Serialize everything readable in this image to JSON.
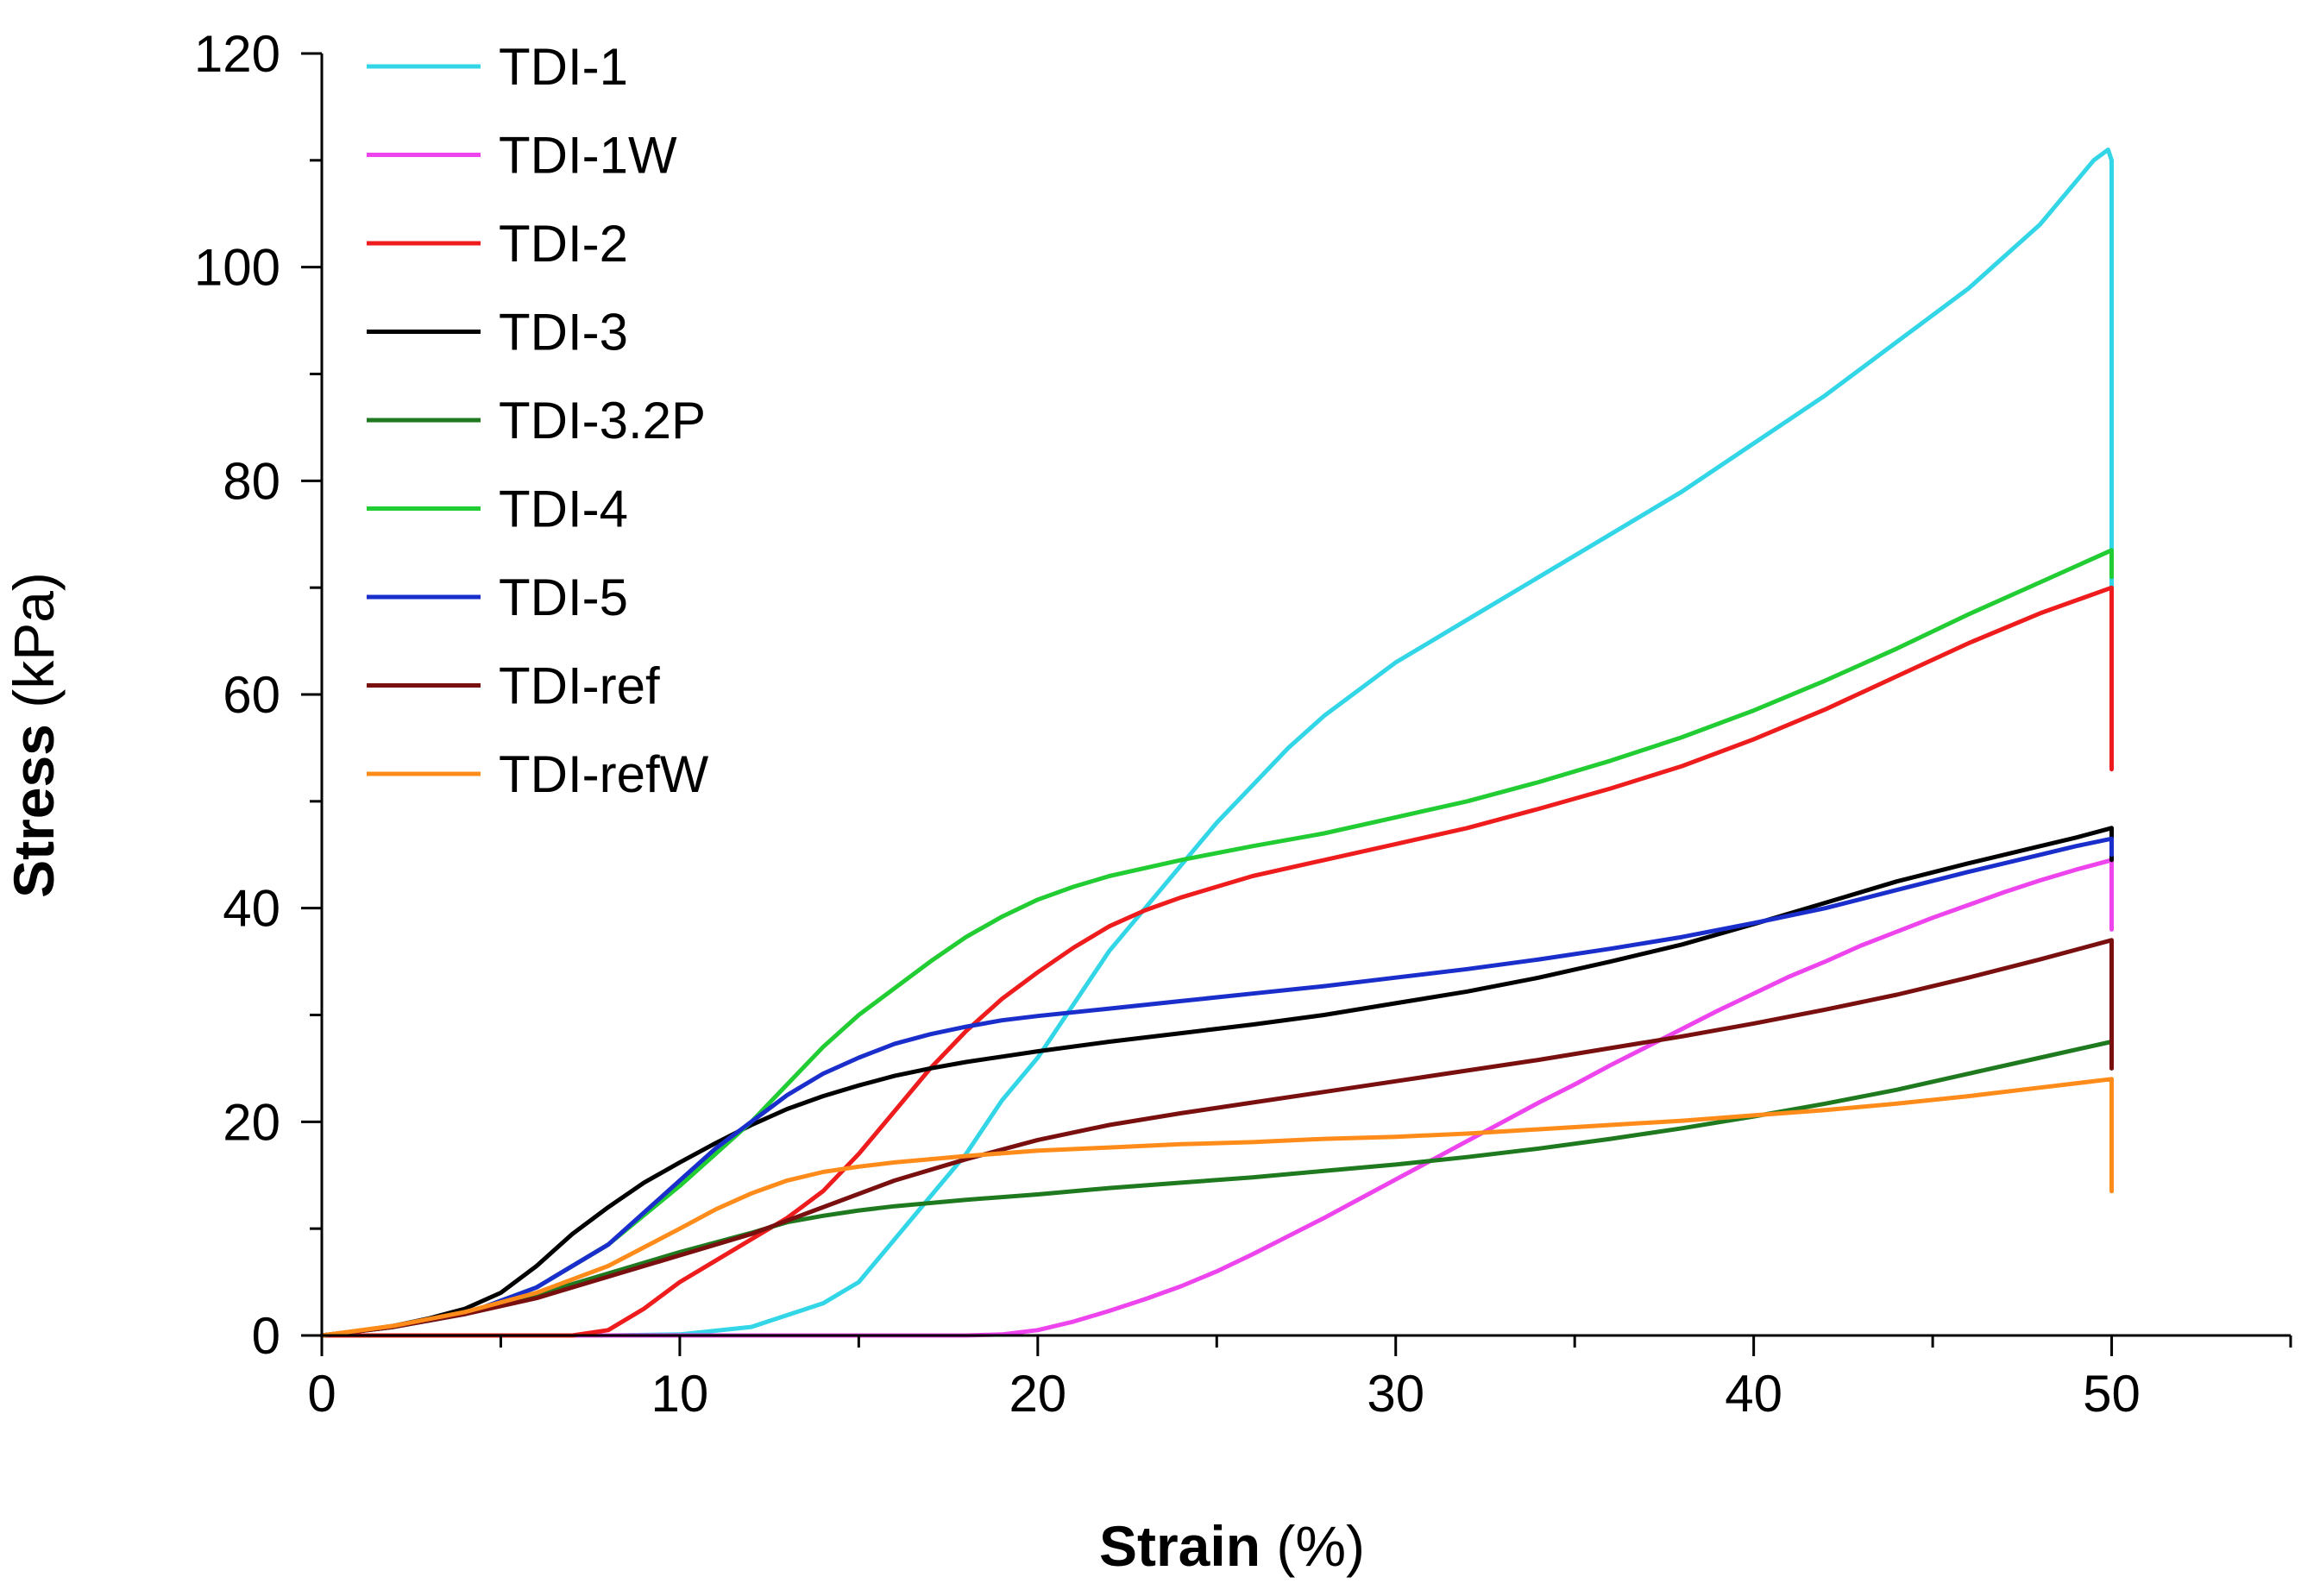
{
  "chart_data": {
    "type": "line",
    "xlabel_bold": "Strain",
    "xlabel_unit": " (%)",
    "ylabel_bold": "Stress",
    "ylabel_unit": " (kPa)",
    "xlim": [
      0,
      55
    ],
    "ylim": [
      0,
      120
    ],
    "xticks": [
      0,
      10,
      20,
      30,
      40,
      50
    ],
    "yticks": [
      0,
      20,
      40,
      60,
      80,
      100,
      120
    ],
    "legend_position": "top-left",
    "grid": false,
    "series": [
      {
        "name": "TDI-1",
        "color": "#33D6E6",
        "points": [
          [
            0,
            0
          ],
          [
            8,
            0
          ],
          [
            10,
            0.1
          ],
          [
            12,
            0.8
          ],
          [
            14,
            3
          ],
          [
            15,
            5
          ],
          [
            16,
            9
          ],
          [
            17,
            13
          ],
          [
            18,
            17
          ],
          [
            19,
            22
          ],
          [
            20,
            26
          ],
          [
            21,
            31
          ],
          [
            22,
            36
          ],
          [
            23,
            40
          ],
          [
            24,
            44
          ],
          [
            25,
            48
          ],
          [
            26,
            51.5
          ],
          [
            27,
            55
          ],
          [
            28,
            58
          ],
          [
            30,
            63
          ],
          [
            32,
            67
          ],
          [
            34,
            71
          ],
          [
            36,
            75
          ],
          [
            38,
            79
          ],
          [
            40,
            83.5
          ],
          [
            42,
            88
          ],
          [
            44,
            93
          ],
          [
            46,
            98
          ],
          [
            48,
            104
          ],
          [
            49.5,
            110
          ],
          [
            49.9,
            111
          ],
          [
            50,
            110
          ],
          [
            50,
            54
          ]
        ]
      },
      {
        "name": "TDI-1W",
        "color": "#EE44EE",
        "points": [
          [
            0,
            0
          ],
          [
            18,
            0
          ],
          [
            19,
            0.1
          ],
          [
            20,
            0.5
          ],
          [
            21,
            1.3
          ],
          [
            22,
            2.3
          ],
          [
            23,
            3.4
          ],
          [
            24,
            4.6
          ],
          [
            25,
            6
          ],
          [
            26,
            7.6
          ],
          [
            27,
            9.3
          ],
          [
            28,
            11
          ],
          [
            29,
            12.8
          ],
          [
            30,
            14.6
          ],
          [
            31,
            16.4
          ],
          [
            32,
            18.2
          ],
          [
            33,
            20
          ],
          [
            34,
            21.8
          ],
          [
            35,
            23.5
          ],
          [
            36,
            25.3
          ],
          [
            37,
            27
          ],
          [
            38,
            28.7
          ],
          [
            39,
            30.4
          ],
          [
            40,
            32
          ],
          [
            41,
            33.6
          ],
          [
            42,
            35
          ],
          [
            43,
            36.5
          ],
          [
            44,
            37.8
          ],
          [
            45,
            39.1
          ],
          [
            46,
            40.3
          ],
          [
            47,
            41.5
          ],
          [
            48,
            42.6
          ],
          [
            49,
            43.6
          ],
          [
            50,
            44.5
          ],
          [
            50,
            38
          ]
        ]
      },
      {
        "name": "TDI-2",
        "color": "#EE1C1C",
        "points": [
          [
            0,
            0
          ],
          [
            7,
            0
          ],
          [
            8,
            0.5
          ],
          [
            9,
            2.5
          ],
          [
            10,
            5
          ],
          [
            11,
            7
          ],
          [
            12,
            9
          ],
          [
            13,
            11
          ],
          [
            14,
            13.5
          ],
          [
            15,
            17
          ],
          [
            16,
            21
          ],
          [
            17,
            25
          ],
          [
            18,
            28.5
          ],
          [
            19,
            31.5
          ],
          [
            20,
            34
          ],
          [
            21,
            36.3
          ],
          [
            22,
            38.3
          ],
          [
            23,
            39.8
          ],
          [
            24,
            41
          ],
          [
            25,
            42
          ],
          [
            26,
            43
          ],
          [
            28,
            44.5
          ],
          [
            30,
            46
          ],
          [
            32,
            47.5
          ],
          [
            34,
            49.3
          ],
          [
            36,
            51.2
          ],
          [
            38,
            53.3
          ],
          [
            40,
            55.8
          ],
          [
            42,
            58.6
          ],
          [
            44,
            61.7
          ],
          [
            46,
            64.8
          ],
          [
            48,
            67.6
          ],
          [
            49,
            68.8
          ],
          [
            50,
            70
          ],
          [
            50,
            53
          ]
        ]
      },
      {
        "name": "TDI-3",
        "color": "#000000",
        "points": [
          [
            0,
            0
          ],
          [
            1,
            0.4
          ],
          [
            2,
            0.9
          ],
          [
            3,
            1.6
          ],
          [
            4,
            2.5
          ],
          [
            5,
            4
          ],
          [
            6,
            6.5
          ],
          [
            7,
            9.5
          ],
          [
            8,
            12
          ],
          [
            9,
            14.3
          ],
          [
            10,
            16.2
          ],
          [
            11,
            18
          ],
          [
            12,
            19.7
          ],
          [
            13,
            21.2
          ],
          [
            14,
            22.4
          ],
          [
            15,
            23.4
          ],
          [
            16,
            24.3
          ],
          [
            17,
            25
          ],
          [
            18,
            25.6
          ],
          [
            19,
            26.1
          ],
          [
            20,
            26.6
          ],
          [
            22,
            27.5
          ],
          [
            24,
            28.3
          ],
          [
            26,
            29.1
          ],
          [
            28,
            30
          ],
          [
            30,
            31.1
          ],
          [
            32,
            32.2
          ],
          [
            34,
            33.5
          ],
          [
            36,
            35
          ],
          [
            38,
            36.6
          ],
          [
            40,
            38.5
          ],
          [
            42,
            40.5
          ],
          [
            44,
            42.5
          ],
          [
            46,
            44.2
          ],
          [
            48,
            45.8
          ],
          [
            49,
            46.6
          ],
          [
            50,
            47.5
          ],
          [
            50,
            44.5
          ]
        ]
      },
      {
        "name": "TDI-3.2P",
        "color": "#1F7A1F",
        "points": [
          [
            0,
            0
          ],
          [
            2,
            0.8
          ],
          [
            4,
            2.2
          ],
          [
            6,
            3.8
          ],
          [
            8,
            5.8
          ],
          [
            10,
            7.8
          ],
          [
            12,
            9.6
          ],
          [
            13,
            10.6
          ],
          [
            14,
            11.2
          ],
          [
            15,
            11.7
          ],
          [
            16,
            12.1
          ],
          [
            18,
            12.7
          ],
          [
            20,
            13.2
          ],
          [
            22,
            13.8
          ],
          [
            24,
            14.3
          ],
          [
            26,
            14.8
          ],
          [
            28,
            15.4
          ],
          [
            30,
            16
          ],
          [
            32,
            16.7
          ],
          [
            34,
            17.5
          ],
          [
            36,
            18.4
          ],
          [
            38,
            19.4
          ],
          [
            40,
            20.5
          ],
          [
            42,
            21.7
          ],
          [
            44,
            23
          ],
          [
            46,
            24.5
          ],
          [
            48,
            26
          ],
          [
            50,
            27.5
          ],
          [
            50,
            25
          ]
        ]
      },
      {
        "name": "TDI-4",
        "color": "#22CC33",
        "points": [
          [
            0,
            0
          ],
          [
            2,
            0.8
          ],
          [
            4,
            2
          ],
          [
            6,
            4.5
          ],
          [
            8,
            8.5
          ],
          [
            10,
            14
          ],
          [
            11,
            17
          ],
          [
            12,
            20
          ],
          [
            13,
            23.5
          ],
          [
            14,
            27
          ],
          [
            15,
            30
          ],
          [
            16,
            32.5
          ],
          [
            17,
            35
          ],
          [
            18,
            37.3
          ],
          [
            19,
            39.2
          ],
          [
            20,
            40.8
          ],
          [
            21,
            42
          ],
          [
            22,
            43
          ],
          [
            24,
            44.5
          ],
          [
            26,
            45.8
          ],
          [
            28,
            47
          ],
          [
            30,
            48.5
          ],
          [
            32,
            50
          ],
          [
            34,
            51.8
          ],
          [
            36,
            53.8
          ],
          [
            38,
            56
          ],
          [
            40,
            58.5
          ],
          [
            42,
            61.3
          ],
          [
            44,
            64.3
          ],
          [
            46,
            67.5
          ],
          [
            48,
            70.5
          ],
          [
            49,
            72
          ],
          [
            50,
            73.5
          ],
          [
            50,
            71
          ]
        ]
      },
      {
        "name": "TDI-5",
        "color": "#1A2ECC",
        "points": [
          [
            0,
            0
          ],
          [
            2,
            0.8
          ],
          [
            4,
            2
          ],
          [
            6,
            4.5
          ],
          [
            8,
            8.5
          ],
          [
            10,
            14.5
          ],
          [
            11,
            17.5
          ],
          [
            12,
            20
          ],
          [
            13,
            22.5
          ],
          [
            14,
            24.5
          ],
          [
            15,
            26
          ],
          [
            16,
            27.3
          ],
          [
            17,
            28.2
          ],
          [
            18,
            28.9
          ],
          [
            19,
            29.5
          ],
          [
            20,
            29.9
          ],
          [
            22,
            30.6
          ],
          [
            24,
            31.3
          ],
          [
            26,
            32
          ],
          [
            28,
            32.7
          ],
          [
            30,
            33.5
          ],
          [
            32,
            34.3
          ],
          [
            34,
            35.2
          ],
          [
            36,
            36.2
          ],
          [
            38,
            37.3
          ],
          [
            40,
            38.6
          ],
          [
            42,
            40
          ],
          [
            44,
            41.7
          ],
          [
            46,
            43.4
          ],
          [
            48,
            45
          ],
          [
            49,
            45.8
          ],
          [
            50,
            46.5
          ],
          [
            50,
            45
          ]
        ]
      },
      {
        "name": "TDI-ref",
        "color": "#7A0F0F",
        "points": [
          [
            0,
            0
          ],
          [
            2,
            0.8
          ],
          [
            4,
            2
          ],
          [
            6,
            3.5
          ],
          [
            8,
            5.5
          ],
          [
            10,
            7.5
          ],
          [
            12,
            9.5
          ],
          [
            14,
            12
          ],
          [
            16,
            14.5
          ],
          [
            18,
            16.5
          ],
          [
            20,
            18.3
          ],
          [
            22,
            19.7
          ],
          [
            24,
            20.8
          ],
          [
            26,
            21.8
          ],
          [
            28,
            22.8
          ],
          [
            30,
            23.8
          ],
          [
            32,
            24.8
          ],
          [
            34,
            25.8
          ],
          [
            36,
            26.9
          ],
          [
            38,
            28
          ],
          [
            40,
            29.2
          ],
          [
            42,
            30.5
          ],
          [
            44,
            31.9
          ],
          [
            46,
            33.5
          ],
          [
            48,
            35.2
          ],
          [
            50,
            37
          ],
          [
            50,
            25
          ]
        ]
      },
      {
        "name": "TDI-refW",
        "color": "#FF8C1A",
        "points": [
          [
            0,
            0
          ],
          [
            2,
            0.9
          ],
          [
            4,
            2.2
          ],
          [
            6,
            4
          ],
          [
            8,
            6.5
          ],
          [
            10,
            10
          ],
          [
            11,
            11.8
          ],
          [
            12,
            13.3
          ],
          [
            13,
            14.5
          ],
          [
            14,
            15.3
          ],
          [
            15,
            15.8
          ],
          [
            16,
            16.2
          ],
          [
            18,
            16.8
          ],
          [
            20,
            17.3
          ],
          [
            22,
            17.6
          ],
          [
            24,
            17.9
          ],
          [
            26,
            18.1
          ],
          [
            28,
            18.4
          ],
          [
            30,
            18.6
          ],
          [
            32,
            18.9
          ],
          [
            34,
            19.3
          ],
          [
            36,
            19.7
          ],
          [
            38,
            20.1
          ],
          [
            40,
            20.6
          ],
          [
            42,
            21.1
          ],
          [
            44,
            21.7
          ],
          [
            46,
            22.4
          ],
          [
            48,
            23.2
          ],
          [
            50,
            24
          ],
          [
            50,
            13.5
          ]
        ]
      }
    ]
  }
}
